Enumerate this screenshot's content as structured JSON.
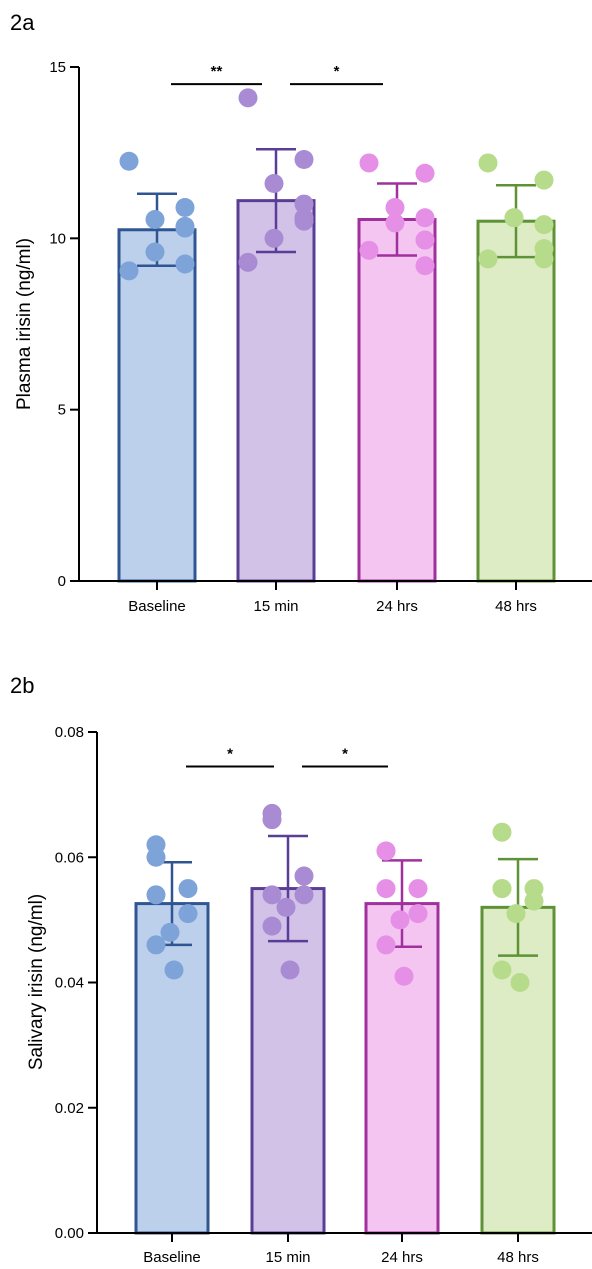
{
  "chart_data": [
    {
      "type": "bar",
      "panel_label": "2a",
      "ylabel": "Plasma irisin (ng/ml)",
      "xlabel": "",
      "categories": [
        "Baseline",
        "15 min",
        "24 hrs",
        "48 hrs"
      ],
      "yticks": [
        "0",
        "5",
        "10",
        "15"
      ],
      "ylim": [
        0,
        15
      ],
      "grid": false,
      "error_bar": "mean ± SD",
      "colors": {
        "fill": [
          "#bcd0ec",
          "#d2c2e8",
          "#f3c5f0",
          "#ddecc4"
        ],
        "stroke": [
          "#2f5592",
          "#5a3d95",
          "#a0309c",
          "#5e9236"
        ],
        "dot": [
          "#7ea3d9",
          "#a98bd4",
          "#e68fe6",
          "#b6dc8b"
        ]
      },
      "means": [
        10.25,
        11.1,
        10.55,
        10.5
      ],
      "sd": [
        1.05,
        1.5,
        1.05,
        1.05
      ],
      "points": [
        [
          12.25,
          10.35,
          10.55,
          10.9,
          9.6,
          10.3,
          9.05,
          9.25
        ],
        [
          14.1,
          12.3,
          11.6,
          10.6,
          10.0,
          10.5,
          9.3,
          11.0
        ],
        [
          12.2,
          11.9,
          10.9,
          10.6,
          10.45,
          9.95,
          9.65,
          9.2
        ],
        [
          12.2,
          11.7,
          10.6,
          10.4,
          10.6,
          9.7,
          9.4,
          9.4
        ]
      ],
      "significance": [
        {
          "from": 0,
          "to": 1,
          "label": "**",
          "y": 14.5
        },
        {
          "from": 1,
          "to": 2,
          "label": "*",
          "y": 14.5
        }
      ]
    },
    {
      "type": "bar",
      "panel_label": "2b",
      "ylabel": "Salivary irisin (ng/ml)",
      "xlabel": "",
      "categories": [
        "Baseline",
        "15 min",
        "24 hrs",
        "48 hrs"
      ],
      "yticks": [
        "0.00",
        "0.02",
        "0.04",
        "0.06",
        "0.08"
      ],
      "ylim": [
        0,
        0.08
      ],
      "grid": false,
      "error_bar": "mean ± SD",
      "colors": {
        "fill": [
          "#bcd0ec",
          "#d2c2e8",
          "#f3c5f0",
          "#ddecc4"
        ],
        "stroke": [
          "#2f5592",
          "#5a3d95",
          "#a0309c",
          "#5e9236"
        ],
        "dot": [
          "#7ea3d9",
          "#a98bd4",
          "#e68fe6",
          "#b6dc8b"
        ]
      },
      "means": [
        0.0526,
        0.055,
        0.0526,
        0.052
      ],
      "sd": [
        0.0066,
        0.0084,
        0.0069,
        0.0077
      ],
      "points": [
        [
          0.062,
          0.06,
          0.055,
          0.054,
          0.051,
          0.048,
          0.046,
          0.042
        ],
        [
          0.067,
          0.066,
          0.057,
          0.054,
          0.054,
          0.052,
          0.049,
          0.042
        ],
        [
          0.061,
          0.061,
          0.055,
          0.055,
          0.051,
          0.05,
          0.046,
          0.041
        ],
        [
          0.064,
          0.055,
          0.055,
          0.055,
          0.053,
          0.051,
          0.042,
          0.04
        ]
      ],
      "significance": [
        {
          "from": 0,
          "to": 1,
          "label": "*",
          "y": 0.0745
        },
        {
          "from": 1,
          "to": 2,
          "label": "*",
          "y": 0.0745
        }
      ]
    }
  ]
}
